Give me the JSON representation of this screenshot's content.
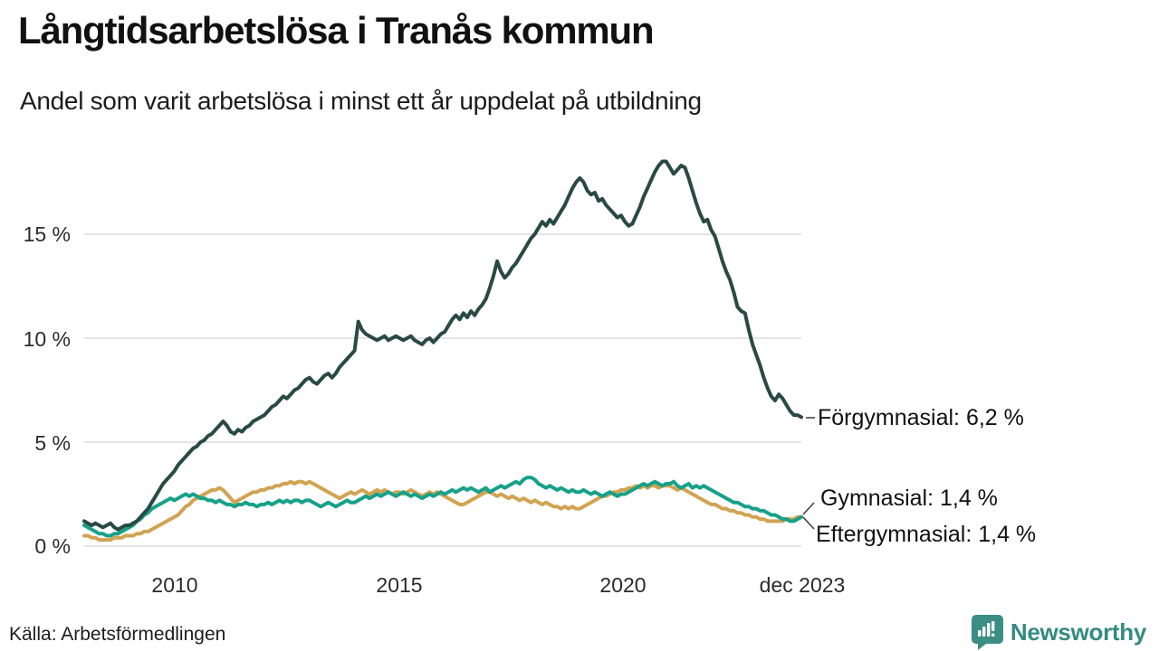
{
  "header": {
    "title": "Långtidsarbetslösa i Tranås kommun",
    "subtitle": "Andel som varit arbetslösa i minst ett år uppdelat på utbildning"
  },
  "chart_data": {
    "type": "line",
    "x_unit": "month",
    "x_range": [
      "2008-01",
      "2023-12"
    ],
    "grid": "horizontal",
    "grid_color": "#e4e4e4",
    "ylim": [
      0,
      19
    ],
    "yticks": [
      {
        "label": "15 %",
        "value": 15
      },
      {
        "label": "10 %",
        "value": 10
      },
      {
        "label": "5 %",
        "value": 5
      },
      {
        "label": "0 %",
        "value": 0
      }
    ],
    "xticks": [
      {
        "label": "2010",
        "value": 2010
      },
      {
        "label": "2015",
        "value": 2015
      },
      {
        "label": "2020",
        "value": 2020
      },
      {
        "label": "dec 2023",
        "value": 2024
      }
    ],
    "series": [
      {
        "name": "Förgymnasial",
        "color": "#294a42",
        "end_value": "6,2 %",
        "values": [
          1.2,
          1.1,
          1.0,
          1.1,
          1.0,
          0.9,
          1.0,
          1.1,
          0.9,
          0.8,
          0.9,
          1.0,
          1.0,
          1.1,
          1.2,
          1.4,
          1.6,
          1.8,
          2.1,
          2.4,
          2.7,
          3.0,
          3.2,
          3.4,
          3.6,
          3.9,
          4.1,
          4.3,
          4.5,
          4.7,
          4.8,
          5.0,
          5.1,
          5.3,
          5.4,
          5.6,
          5.8,
          6.0,
          5.8,
          5.5,
          5.4,
          5.6,
          5.5,
          5.7,
          5.8,
          6.0,
          6.1,
          6.2,
          6.3,
          6.5,
          6.7,
          6.8,
          7.0,
          7.2,
          7.1,
          7.3,
          7.5,
          7.6,
          7.8,
          8.0,
          8.1,
          7.9,
          7.8,
          8.0,
          8.2,
          8.3,
          8.1,
          8.3,
          8.6,
          8.8,
          9.0,
          9.2,
          9.4,
          10.8,
          10.4,
          10.2,
          10.1,
          10.0,
          9.9,
          10.0,
          10.1,
          9.9,
          10.0,
          10.1,
          10.0,
          9.9,
          10.0,
          10.1,
          9.9,
          9.8,
          9.7,
          9.9,
          10.0,
          9.8,
          10.0,
          10.2,
          10.3,
          10.6,
          10.9,
          11.1,
          10.9,
          11.2,
          11.0,
          11.3,
          11.1,
          11.4,
          11.6,
          11.9,
          12.4,
          13.0,
          13.7,
          13.2,
          12.9,
          13.1,
          13.4,
          13.6,
          13.9,
          14.2,
          14.5,
          14.8,
          15.0,
          15.3,
          15.6,
          15.4,
          15.7,
          15.5,
          15.8,
          16.1,
          16.4,
          16.8,
          17.2,
          17.5,
          17.7,
          17.5,
          17.1,
          16.9,
          17.0,
          16.6,
          16.7,
          16.4,
          16.2,
          16.0,
          15.8,
          15.9,
          15.6,
          15.4,
          15.5,
          15.9,
          16.3,
          16.8,
          17.2,
          17.6,
          18.0,
          18.3,
          18.5,
          18.5,
          18.2,
          17.9,
          18.1,
          18.3,
          18.2,
          17.7,
          17.1,
          16.5,
          16.0,
          15.6,
          15.7,
          15.2,
          14.9,
          14.3,
          13.7,
          13.2,
          12.8,
          12.2,
          11.5,
          11.3,
          11.2,
          10.4,
          9.7,
          9.2,
          8.7,
          8.1,
          7.6,
          7.2,
          7.0,
          7.3,
          7.1,
          6.8,
          6.5,
          6.3,
          6.3,
          6.2
        ]
      },
      {
        "name": "Gymnasial",
        "color": "#17a189",
        "end_value": "1,4 %",
        "values": [
          1.0,
          0.9,
          0.8,
          0.7,
          0.6,
          0.6,
          0.5,
          0.5,
          0.6,
          0.6,
          0.7,
          0.8,
          0.9,
          1.0,
          1.2,
          1.3,
          1.5,
          1.6,
          1.8,
          1.9,
          2.0,
          2.1,
          2.2,
          2.3,
          2.2,
          2.3,
          2.4,
          2.5,
          2.4,
          2.5,
          2.4,
          2.3,
          2.3,
          2.2,
          2.2,
          2.1,
          2.2,
          2.1,
          2.0,
          2.0,
          1.9,
          2.0,
          2.0,
          2.1,
          2.0,
          2.0,
          1.9,
          2.0,
          2.0,
          2.1,
          2.0,
          2.1,
          2.2,
          2.1,
          2.2,
          2.1,
          2.2,
          2.2,
          2.1,
          2.2,
          2.2,
          2.1,
          2.0,
          1.9,
          2.0,
          2.1,
          2.0,
          1.9,
          2.0,
          2.1,
          2.2,
          2.1,
          2.1,
          2.2,
          2.3,
          2.4,
          2.3,
          2.4,
          2.5,
          2.4,
          2.5,
          2.6,
          2.5,
          2.4,
          2.5,
          2.6,
          2.5,
          2.4,
          2.5,
          2.4,
          2.3,
          2.4,
          2.5,
          2.4,
          2.5,
          2.6,
          2.5,
          2.6,
          2.7,
          2.6,
          2.7,
          2.8,
          2.7,
          2.8,
          2.7,
          2.6,
          2.7,
          2.8,
          2.6,
          2.7,
          2.8,
          2.9,
          2.8,
          2.9,
          3.0,
          3.1,
          3.0,
          3.2,
          3.3,
          3.3,
          3.2,
          3.0,
          2.9,
          2.8,
          2.9,
          2.8,
          2.7,
          2.8,
          2.7,
          2.6,
          2.7,
          2.6,
          2.6,
          2.7,
          2.6,
          2.5,
          2.6,
          2.5,
          2.4,
          2.5,
          2.6,
          2.5,
          2.4,
          2.5,
          2.5,
          2.6,
          2.7,
          2.8,
          2.9,
          3.0,
          2.9,
          3.0,
          3.1,
          3.0,
          2.9,
          3.0,
          3.0,
          3.1,
          2.9,
          2.8,
          2.9,
          3.0,
          2.8,
          2.9,
          2.8,
          2.9,
          2.8,
          2.7,
          2.6,
          2.5,
          2.4,
          2.3,
          2.2,
          2.1,
          2.1,
          2.0,
          1.9,
          1.9,
          1.8,
          1.8,
          1.7,
          1.7,
          1.6,
          1.5,
          1.5,
          1.4,
          1.3,
          1.3,
          1.2,
          1.2,
          1.3,
          1.4
        ]
      },
      {
        "name": "Eftergymnasial",
        "color": "#d1a352",
        "end_value": "1,4 %",
        "values": [
          0.5,
          0.5,
          0.4,
          0.4,
          0.3,
          0.3,
          0.3,
          0.3,
          0.4,
          0.4,
          0.4,
          0.5,
          0.5,
          0.5,
          0.6,
          0.6,
          0.7,
          0.7,
          0.8,
          0.9,
          1.0,
          1.1,
          1.2,
          1.3,
          1.4,
          1.5,
          1.7,
          1.9,
          2.0,
          2.2,
          2.3,
          2.4,
          2.5,
          2.6,
          2.7,
          2.7,
          2.8,
          2.7,
          2.5,
          2.3,
          2.1,
          2.2,
          2.3,
          2.4,
          2.5,
          2.6,
          2.6,
          2.7,
          2.7,
          2.8,
          2.8,
          2.9,
          2.9,
          3.0,
          3.0,
          3.1,
          3.0,
          3.1,
          3.1,
          3.0,
          3.1,
          3.0,
          2.9,
          2.8,
          2.7,
          2.6,
          2.5,
          2.4,
          2.3,
          2.4,
          2.5,
          2.6,
          2.5,
          2.6,
          2.7,
          2.6,
          2.5,
          2.6,
          2.7,
          2.6,
          2.7,
          2.6,
          2.5,
          2.6,
          2.6,
          2.5,
          2.6,
          2.7,
          2.6,
          2.5,
          2.4,
          2.5,
          2.6,
          2.5,
          2.6,
          2.5,
          2.4,
          2.3,
          2.2,
          2.1,
          2.0,
          2.0,
          2.1,
          2.2,
          2.3,
          2.4,
          2.5,
          2.6,
          2.6,
          2.5,
          2.4,
          2.5,
          2.4,
          2.3,
          2.4,
          2.3,
          2.2,
          2.3,
          2.2,
          2.1,
          2.2,
          2.1,
          2.0,
          2.1,
          2.0,
          1.9,
          1.9,
          1.8,
          1.9,
          1.8,
          1.9,
          1.8,
          1.8,
          1.9,
          2.0,
          2.1,
          2.2,
          2.3,
          2.4,
          2.4,
          2.5,
          2.6,
          2.6,
          2.7,
          2.7,
          2.8,
          2.8,
          2.9,
          2.8,
          2.9,
          2.8,
          2.9,
          2.9,
          2.8,
          2.9,
          2.9,
          2.9,
          2.8,
          2.7,
          2.8,
          2.7,
          2.6,
          2.5,
          2.4,
          2.3,
          2.2,
          2.1,
          2.0,
          2.0,
          1.9,
          1.8,
          1.8,
          1.7,
          1.7,
          1.6,
          1.6,
          1.5,
          1.5,
          1.4,
          1.4,
          1.3,
          1.3,
          1.2,
          1.2,
          1.2,
          1.2,
          1.2,
          1.3,
          1.3,
          1.3,
          1.4,
          1.4
        ]
      }
    ],
    "annotations": [
      {
        "label": "Förgymnasial: 6,2 %"
      },
      {
        "label": "Gymnasial: 1,4 %"
      },
      {
        "label": "Eftergymnasial: 1,4 %"
      }
    ]
  },
  "footer": {
    "source": "Källa: Arbetsförmedlingen",
    "brand": "Newsworthy",
    "brand_color": "#348b80"
  }
}
